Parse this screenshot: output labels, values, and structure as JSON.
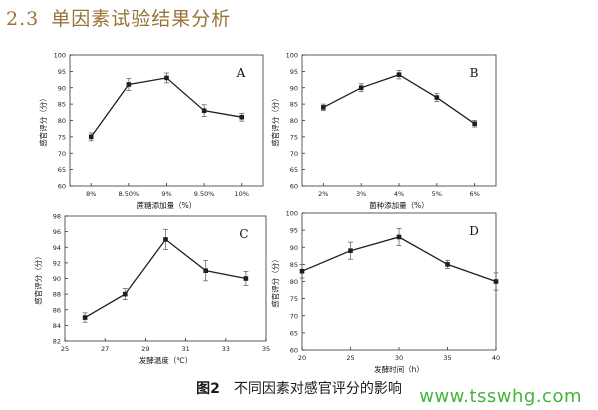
{
  "section": {
    "number": "2.3",
    "title": "单因素试验结果分析"
  },
  "caption": {
    "label": "图2",
    "text": "不同因素对感官评分的影响"
  },
  "watermark": "www.tsswhg.com",
  "colors": {
    "line": "#1f1f1f",
    "axis": "#333333",
    "title": "#9a7338",
    "watermark": "#43b43a"
  },
  "chart_data": [
    {
      "type": "line",
      "panel": "A",
      "xlabel": "蔗糖添加量（%）",
      "ylabel": "感官评分（分）",
      "categories": [
        "8%",
        "8.50%",
        "9%",
        "9.50%",
        "10%"
      ],
      "values": [
        75,
        91,
        93,
        83,
        81
      ],
      "errors": [
        1.2,
        1.8,
        1.5,
        1.8,
        1.2
      ],
      "ylim": [
        60,
        100
      ],
      "yticks": [
        60,
        65,
        70,
        75,
        80,
        85,
        90,
        95,
        100
      ]
    },
    {
      "type": "line",
      "panel": "B",
      "xlabel": "菌种添加量（%）",
      "ylabel": "感官评分（分）",
      "categories": [
        "2%",
        "3%",
        "4%",
        "5%",
        "6%"
      ],
      "values": [
        84,
        90,
        94,
        87,
        79
      ],
      "errors": [
        1.0,
        1.2,
        1.3,
        1.2,
        1.0
      ],
      "ylim": [
        60,
        100
      ],
      "yticks": [
        60,
        65,
        70,
        75,
        80,
        85,
        90,
        95,
        100
      ]
    },
    {
      "type": "line",
      "panel": "C",
      "xlabel": "发酵温度（℃）",
      "ylabel": "感官评分（分）",
      "x": [
        26,
        28,
        30,
        32,
        34
      ],
      "values": [
        85,
        88,
        95,
        91,
        90
      ],
      "errors": [
        0.6,
        0.7,
        1.3,
        1.3,
        0.9
      ],
      "xlim": [
        25,
        35
      ],
      "xticks": [
        25,
        27,
        29,
        31,
        33,
        35
      ],
      "ylim": [
        82,
        98
      ],
      "yticks": [
        82,
        84,
        86,
        88,
        90,
        92,
        94,
        96,
        98
      ]
    },
    {
      "type": "line",
      "panel": "D",
      "xlabel": "发酵时间（h）",
      "ylabel": "感官评分（分）",
      "x": [
        20,
        25,
        30,
        35,
        40
      ],
      "values": [
        83,
        89,
        93,
        85,
        80
      ],
      "errors": [
        2.0,
        2.5,
        2.5,
        1.2,
        2.5
      ],
      "xlim": [
        20,
        40
      ],
      "xticks": [
        20,
        25,
        30,
        35,
        40
      ],
      "ylim": [
        60,
        100
      ],
      "yticks": [
        60,
        65,
        70,
        75,
        80,
        85,
        90,
        95,
        100
      ]
    }
  ]
}
